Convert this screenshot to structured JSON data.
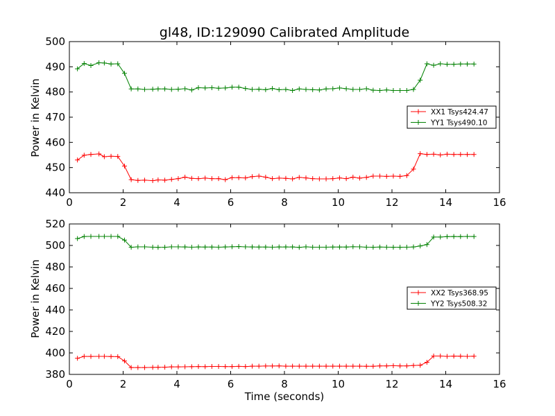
{
  "chart_data": [
    {
      "type": "line",
      "title": "gl48, ID:129090 Calibrated Amplitude",
      "xlabel": "",
      "ylabel": "Power in Kelvin",
      "xlim": [
        0,
        16
      ],
      "ylim": [
        440,
        500
      ],
      "xticks": [
        "0",
        "2",
        "4",
        "6",
        "8",
        "10",
        "12",
        "14",
        "16"
      ],
      "yticks": [
        "440",
        "450",
        "460",
        "470",
        "480",
        "490",
        "500"
      ],
      "legend_position": "right",
      "grid": false,
      "x": [
        0.3,
        0.55,
        0.8,
        1.1,
        1.3,
        1.55,
        1.8,
        2.05,
        2.3,
        2.55,
        2.8,
        3.1,
        3.3,
        3.55,
        3.8,
        4.05,
        4.3,
        4.55,
        4.8,
        5.05,
        5.3,
        5.55,
        5.8,
        6.05,
        6.3,
        6.55,
        6.8,
        7.05,
        7.3,
        7.55,
        7.8,
        8.05,
        8.3,
        8.55,
        8.8,
        9.05,
        9.3,
        9.55,
        9.8,
        10.05,
        10.3,
        10.55,
        10.8,
        11.05,
        11.3,
        11.55,
        11.8,
        12.05,
        12.3,
        12.55,
        12.8,
        13.05,
        13.3,
        13.55,
        13.8,
        14.05,
        14.3,
        14.55,
        14.8,
        15.05
      ],
      "series": [
        {
          "name": "XX1 Tsys424.47",
          "color": "#ff0000",
          "values": [
            453,
            454.9,
            455.2,
            455.4,
            454.3,
            454.5,
            454.4,
            450.6,
            445.2,
            444.9,
            445,
            444.8,
            445.1,
            445,
            445.3,
            445.6,
            446.2,
            445.7,
            445.6,
            445.8,
            445.6,
            445.6,
            445.2,
            446,
            446,
            445.9,
            446.4,
            446.6,
            446.2,
            445.6,
            445.8,
            445.7,
            445.5,
            446.1,
            445.9,
            445.6,
            445.5,
            445.5,
            445.6,
            445.9,
            445.6,
            446.2,
            445.8,
            446.1,
            446.6,
            446.6,
            446.5,
            446.6,
            446.5,
            446.8,
            449.4,
            455.5,
            455.2,
            455.3,
            455,
            455.3,
            455.2,
            455.2,
            455.2,
            455.2
          ]
        },
        {
          "name": "YY1 Tsys490.10",
          "color": "#008000",
          "values": [
            489.2,
            491.3,
            490.5,
            491.6,
            491.5,
            491.1,
            491.2,
            487.4,
            481.2,
            481.2,
            481,
            481.1,
            481.2,
            481.2,
            481,
            481.1,
            481.3,
            480.8,
            481.7,
            481.6,
            481.7,
            481.5,
            481.6,
            481.9,
            481.9,
            481.4,
            481,
            481.1,
            480.9,
            481.4,
            480.9,
            481,
            480.6,
            481.2,
            481,
            480.9,
            480.8,
            481.2,
            481.3,
            481.6,
            481.3,
            481,
            481,
            481.3,
            480.7,
            480.6,
            480.8,
            480.6,
            480.6,
            480.6,
            481,
            484.7,
            491.2,
            490.6,
            491.2,
            491,
            491,
            491.1,
            491.1,
            491.1
          ]
        }
      ]
    },
    {
      "type": "line",
      "title": "",
      "xlabel": "Time (seconds)",
      "ylabel": "Power in Kelvin",
      "xlim": [
        0,
        16
      ],
      "ylim": [
        380,
        520
      ],
      "xticks": [
        "0",
        "2",
        "4",
        "6",
        "8",
        "10",
        "12",
        "14",
        "16"
      ],
      "yticks": [
        "380",
        "400",
        "420",
        "440",
        "460",
        "480",
        "500",
        "520"
      ],
      "legend_position": "right",
      "grid": false,
      "x": [
        0.3,
        0.55,
        0.8,
        1.1,
        1.3,
        1.55,
        1.8,
        2.05,
        2.3,
        2.55,
        2.8,
        3.1,
        3.3,
        3.55,
        3.8,
        4.05,
        4.3,
        4.55,
        4.8,
        5.05,
        5.3,
        5.55,
        5.8,
        6.05,
        6.3,
        6.55,
        6.8,
        7.05,
        7.3,
        7.55,
        7.8,
        8.05,
        8.3,
        8.55,
        8.8,
        9.05,
        9.3,
        9.55,
        9.8,
        10.05,
        10.3,
        10.55,
        10.8,
        11.05,
        11.3,
        11.55,
        11.8,
        12.05,
        12.3,
        12.55,
        12.8,
        13.05,
        13.3,
        13.55,
        13.8,
        14.05,
        14.3,
        14.55,
        14.8,
        15.05
      ],
      "series": [
        {
          "name": "XX2 Tsys368.95",
          "color": "#ff0000",
          "values": [
            395,
            396.8,
            396.7,
            396.8,
            396.8,
            396.6,
            396.5,
            392.5,
            386.4,
            386.4,
            386.4,
            386.5,
            386.6,
            386.7,
            387,
            387,
            387.1,
            387.2,
            387.3,
            387.2,
            387.4,
            387.4,
            387.3,
            387.3,
            387.5,
            387.3,
            387.7,
            387.7,
            387.8,
            387.8,
            387.9,
            387.7,
            387.7,
            387.7,
            387.7,
            387.7,
            387.7,
            387.7,
            387.7,
            387.7,
            387.7,
            387.7,
            387.7,
            387.6,
            387.6,
            387.9,
            387.9,
            388.1,
            387.9,
            387.9,
            388.3,
            388.5,
            391.3,
            397.1,
            397.1,
            396.8,
            397,
            396.9,
            396.8,
            396.9
          ]
        },
        {
          "name": "YY2 Tsys508.32",
          "color": "#008000",
          "values": [
            506.4,
            508.3,
            508.4,
            508.4,
            508.4,
            508.4,
            508.4,
            505,
            498.3,
            498.7,
            498.7,
            498.4,
            498.2,
            498.3,
            498.7,
            498.7,
            498.6,
            498.4,
            498.6,
            498.5,
            498.5,
            498.4,
            498.6,
            498.8,
            499,
            498.7,
            498.6,
            498.5,
            498.5,
            498.4,
            498.6,
            498.6,
            498.6,
            498.2,
            498.7,
            498.4,
            498.4,
            498.4,
            498.5,
            498.5,
            498.5,
            498.8,
            498.7,
            498.4,
            498.3,
            498.5,
            498.4,
            498.3,
            498.3,
            498.4,
            498.6,
            499.5,
            500.8,
            507.8,
            507.8,
            508.2,
            508.3,
            508.2,
            508.4,
            508.3
          ]
        }
      ]
    }
  ]
}
